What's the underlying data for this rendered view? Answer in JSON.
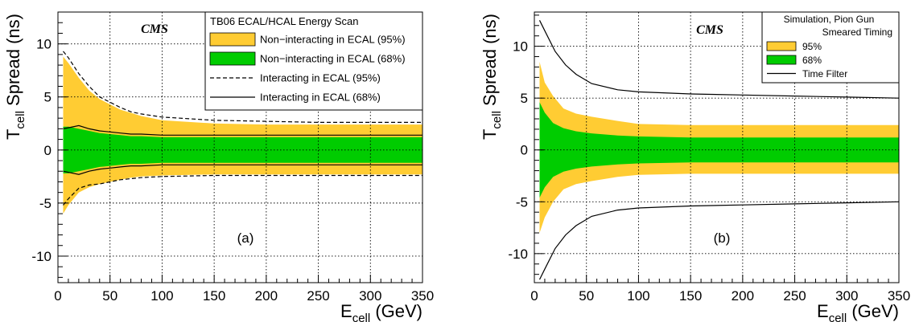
{
  "chart_data": [
    {
      "type": "area",
      "panel_label": "(a)",
      "watermark": "CMS",
      "xlabel_main": "E",
      "xlabel_sub": "cell",
      "xlabel_unit": " (GeV)",
      "ylabel_main": "T",
      "ylabel_sub": "cell",
      "ylabel_unit": " Spread (ns)",
      "xlim": [
        0,
        350
      ],
      "ylim": [
        -12.5,
        13
      ],
      "x_ticks": [
        0,
        50,
        100,
        150,
        200,
        250,
        300,
        350
      ],
      "y_ticks": [
        -10,
        -5,
        0,
        5,
        10
      ],
      "grid": true,
      "legend_position": "top-right",
      "legend_title": "TB06 ECAL/HCAL Energy Scan",
      "legend_title_align": "left",
      "x": [
        5,
        10,
        20,
        30,
        40,
        50,
        60,
        70,
        80,
        100,
        150,
        200,
        250,
        300,
        350
      ],
      "bands": [
        {
          "name": "Non−interacting in ECAL (95%)",
          "color": "#ffcc33",
          "upper": [
            8.8,
            8.2,
            6.8,
            5.6,
            4.8,
            4.3,
            3.8,
            3.5,
            3.2,
            2.8,
            2.5,
            2.4,
            2.4,
            2.4,
            2.4
          ],
          "lower": [
            -6.0,
            -5.2,
            -4.0,
            -3.5,
            -3.2,
            -3.0,
            -2.8,
            -2.6,
            -2.5,
            -2.4,
            -2.3,
            -2.3,
            -2.3,
            -2.3,
            -2.3
          ]
        },
        {
          "name": "Non−interacting in ECAL (68%)",
          "color": "#00cc00",
          "upper": [
            2.2,
            2.2,
            2.0,
            1.8,
            1.6,
            1.5,
            1.4,
            1.3,
            1.3,
            1.2,
            1.2,
            1.2,
            1.2,
            1.2,
            1.2
          ],
          "lower": [
            -2.2,
            -2.2,
            -2.0,
            -1.8,
            -1.6,
            -1.5,
            -1.4,
            -1.3,
            -1.3,
            -1.2,
            -1.2,
            -1.2,
            -1.2,
            -1.2,
            -1.2
          ]
        }
      ],
      "lines": [
        {
          "name": "Interacting in ECAL (95%)",
          "dash": true,
          "x": [
            5,
            10,
            20,
            30,
            40,
            50,
            60,
            70,
            80,
            100,
            150,
            200,
            250,
            300,
            350
          ],
          "y": [
            9.3,
            8.7,
            7.2,
            6.0,
            5.0,
            4.5,
            4.0,
            3.6,
            3.4,
            3.1,
            2.8,
            2.7,
            2.6,
            2.6,
            2.6
          ],
          "y2": [
            -5.2,
            -4.6,
            -3.6,
            -3.3,
            -3.2,
            -3.0,
            -2.8,
            -2.7,
            -2.6,
            -2.5,
            -2.4,
            -2.4,
            -2.4,
            -2.4,
            -2.4
          ]
        },
        {
          "name": "Interacting in ECAL (68%)",
          "dash": false,
          "x": [
            5,
            10,
            20,
            30,
            40,
            50,
            60,
            70,
            80,
            100,
            150,
            200,
            250,
            300,
            350
          ],
          "y": [
            2.0,
            2.1,
            2.3,
            2.0,
            1.8,
            1.7,
            1.6,
            1.5,
            1.5,
            1.4,
            1.4,
            1.4,
            1.4,
            1.4,
            1.4
          ],
          "y2": [
            -2.0,
            -2.1,
            -2.3,
            -2.0,
            -1.8,
            -1.7,
            -1.6,
            -1.5,
            -1.5,
            -1.4,
            -1.4,
            -1.4,
            -1.4,
            -1.4,
            -1.4
          ]
        }
      ]
    },
    {
      "type": "area",
      "panel_label": "(b)",
      "watermark": "CMS",
      "xlabel_main": "E",
      "xlabel_sub": "cell",
      "xlabel_unit": " (GeV)",
      "ylabel_main": "T",
      "ylabel_sub": "cell",
      "ylabel_unit": " Spread (ns)",
      "xlim": [
        0,
        350
      ],
      "ylim": [
        -12.8,
        13.3
      ],
      "x_ticks": [
        0,
        50,
        100,
        150,
        200,
        250,
        300,
        350
      ],
      "y_ticks": [
        -10,
        -5,
        0,
        5,
        10
      ],
      "grid": true,
      "legend_position": "top-right",
      "legend_title": "Simulation, Pion Gun",
      "legend_subtitle": "Smeared Timing",
      "legend_title_align": "center",
      "x": [
        5,
        10,
        18,
        28,
        40,
        55,
        80,
        100,
        150,
        200,
        250,
        300,
        350
      ],
      "bands": [
        {
          "name": "95%",
          "color": "#ffcc33",
          "upper": [
            8.5,
            6.5,
            5.2,
            4.0,
            3.5,
            3.2,
            2.8,
            2.5,
            2.4,
            2.4,
            2.4,
            2.4,
            2.4
          ],
          "lower": [
            -8.0,
            -6.5,
            -5.0,
            -3.8,
            -3.3,
            -3.0,
            -2.6,
            -2.4,
            -2.3,
            -2.3,
            -2.3,
            -2.3,
            -2.3
          ]
        },
        {
          "name": "68%",
          "color": "#00cc00",
          "upper": [
            4.6,
            3.6,
            2.6,
            2.1,
            1.8,
            1.6,
            1.4,
            1.3,
            1.2,
            1.2,
            1.2,
            1.2,
            1.2
          ],
          "lower": [
            -4.6,
            -3.6,
            -2.6,
            -2.1,
            -1.8,
            -1.6,
            -1.4,
            -1.3,
            -1.2,
            -1.2,
            -1.2,
            -1.2,
            -1.2
          ]
        }
      ],
      "lines": [
        {
          "name": "Time Filter",
          "dash": false,
          "x": [
            5,
            10,
            20,
            30,
            40,
            55,
            80,
            100,
            150,
            200,
            250,
            300,
            350
          ],
          "y": [
            12.5,
            11.5,
            9.5,
            8.2,
            7.3,
            6.4,
            5.8,
            5.6,
            5.4,
            5.3,
            5.2,
            5.1,
            5.0
          ],
          "y2": [
            -12.5,
            -11.5,
            -9.5,
            -8.2,
            -7.3,
            -6.4,
            -5.8,
            -5.6,
            -5.4,
            -5.3,
            -5.2,
            -5.1,
            -5.0
          ]
        }
      ]
    }
  ]
}
